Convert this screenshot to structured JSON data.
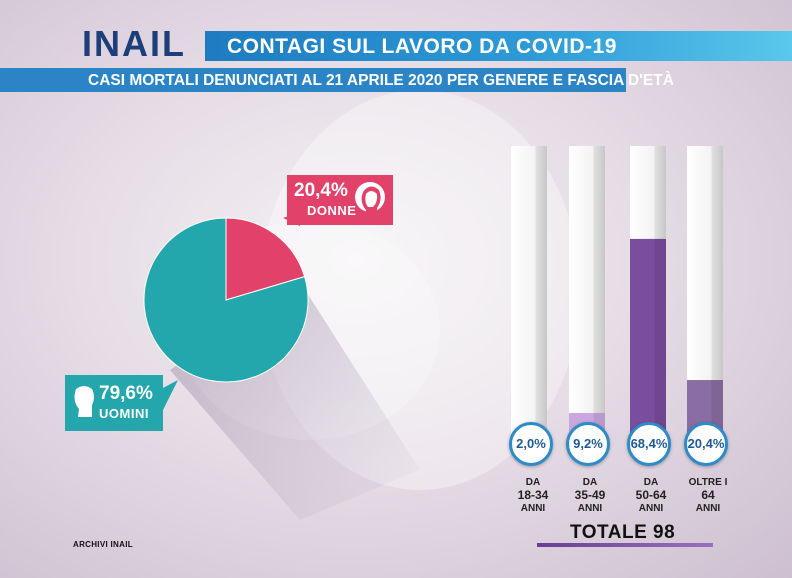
{
  "header": {
    "logo": "INAIL",
    "title": "CONTAGI SUL LAVORO DA COVID-19",
    "subtitle": "CASI MORTALI DENUNCIATI AL 21 APRILE 2020 PER GENERE E FASCIA D'ETÀ"
  },
  "chart_data": [
    {
      "type": "pie",
      "categories": [
        "DONNE",
        "UOMINI"
      ],
      "values": [
        20.4,
        79.6
      ],
      "labels": [
        "20,4%",
        "79,6%"
      ],
      "colors": [
        "#e2416a",
        "#23a6ac"
      ]
    },
    {
      "type": "bar",
      "categories": [
        "DA 18-34 ANNI",
        "DA 35-49 ANNI",
        "DA 50-64 ANNI",
        "OLTRE I 64 ANNI"
      ],
      "values": [
        2.0,
        9.2,
        68.4,
        20.4
      ],
      "labels": [
        "2,0%",
        "9,2%",
        "68,4%",
        "20,4%"
      ],
      "category_parts": [
        [
          "DA",
          "18-34",
          "ANNI"
        ],
        [
          "DA",
          "35-49",
          "ANNI"
        ],
        [
          "DA",
          "50-64",
          "ANNI"
        ],
        [
          "OLTRE I",
          "64",
          "ANNI"
        ]
      ],
      "ylim": [
        0,
        100
      ],
      "colors": [
        "#c9a8e0",
        "#c9a8e0",
        "#7a4d9e",
        "#8a6ea3"
      ],
      "total": "TOTALE 98"
    }
  ],
  "footer": {
    "archivi": "ARCHIVI INAIL"
  }
}
